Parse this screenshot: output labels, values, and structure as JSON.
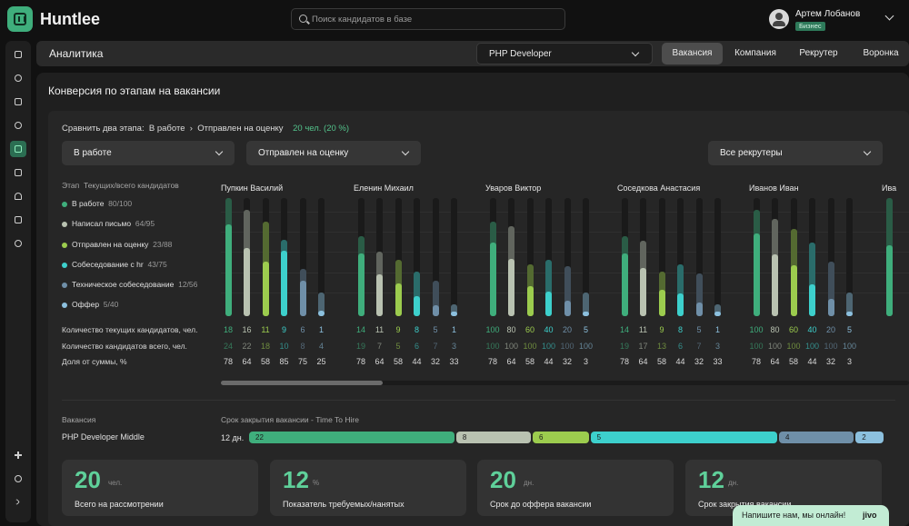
{
  "brand": "Huntlee",
  "search": {
    "placeholder": "Поиск кандидатов в базе"
  },
  "user": {
    "name": "Артем Лобанов",
    "plan": "Бизнес"
  },
  "page": {
    "title": "Аналитика"
  },
  "job_select": {
    "value": "PHP Developer"
  },
  "tabs": [
    {
      "label": "Вакансия",
      "active": true
    },
    {
      "label": "Компания",
      "active": false
    },
    {
      "label": "Рекрутер",
      "active": false
    },
    {
      "label": "Воронка",
      "active": false
    }
  ],
  "panel": {
    "title": "Конверсия по этапам на вакансии"
  },
  "compare": {
    "label": "Сравнить два этапа:",
    "stage_from": "В работе",
    "arrow": "›",
    "stage_to": "Отправлен на оценку",
    "result": "20 чел. (20 %)"
  },
  "filters": {
    "stage1": "В работе",
    "stage2": "Отправлен на оценку",
    "recruiters": "Все рекрутеры"
  },
  "legend_header": {
    "stage": "Этап",
    "current": "Текущих/всего кандидатов"
  },
  "colors": {
    "accent": "#53c28b",
    "stage": [
      "#3fae7c",
      "#b9c2b1",
      "#9ccc4e",
      "#3dd0cc",
      "#6f8fa8",
      "#8cc0de"
    ]
  },
  "stages": [
    {
      "name": "В работе",
      "counts": "80/100"
    },
    {
      "name": "Написал письмо",
      "counts": "64/95"
    },
    {
      "name": "Отправлен на оценку",
      "counts": "23/88"
    },
    {
      "name": "Собеседование с hr",
      "counts": "43/75"
    },
    {
      "name": "Техническое собеседование",
      "counts": "12/56"
    },
    {
      "name": "Оффер",
      "counts": "5/40"
    }
  ],
  "row_labels": {
    "current": "Количество текущих кандидатов, чел.",
    "total": "Количество кандидатов всего, чел.",
    "share": "Доля от суммы, %"
  },
  "recruiters": [
    {
      "name": "Пупкин Василий",
      "current": [
        18,
        16,
        11,
        9,
        6,
        1
      ],
      "total": [
        24,
        22,
        18,
        10,
        8,
        4
      ],
      "share": [
        78,
        64,
        58,
        85,
        75,
        25
      ],
      "bars": [
        1.0,
        0.9,
        0.8,
        0.65,
        0.4,
        0.2
      ]
    },
    {
      "name": "Еленин Михаил",
      "current": [
        14,
        11,
        9,
        8,
        5,
        1
      ],
      "total": [
        19,
        7,
        5,
        6,
        7,
        3
      ],
      "share": [
        78,
        64,
        58,
        44,
        32,
        33
      ],
      "bars": [
        0.68,
        0.55,
        0.48,
        0.38,
        0.3,
        0.1
      ]
    },
    {
      "name": "Уваров Виктор",
      "current": [
        100,
        80,
        60,
        40,
        20,
        5
      ],
      "total": [
        100,
        100,
        100,
        100,
        100,
        100
      ],
      "share": [
        78,
        64,
        58,
        44,
        32,
        3
      ],
      "bars": [
        0.8,
        0.76,
        0.44,
        0.48,
        0.42,
        0.2
      ]
    },
    {
      "name": "Соседкова Анастасия",
      "current": [
        14,
        11,
        9,
        8,
        5,
        1
      ],
      "total": [
        19,
        17,
        13,
        6,
        7,
        3
      ],
      "share": [
        78,
        64,
        58,
        44,
        32,
        33
      ],
      "bars": [
        0.68,
        0.64,
        0.38,
        0.44,
        0.36,
        0.1
      ]
    },
    {
      "name": "Иванов Иван",
      "current": [
        100,
        80,
        60,
        40,
        20,
        5
      ],
      "total": [
        100,
        100,
        100,
        100,
        100,
        100
      ],
      "share": [
        78,
        64,
        58,
        44,
        32,
        3
      ],
      "bars": [
        0.9,
        0.82,
        0.74,
        0.62,
        0.46,
        0.2
      ]
    },
    {
      "name": "Ива",
      "current": [],
      "total": [],
      "share": [],
      "bars": [
        1.0
      ]
    }
  ],
  "bottom": {
    "col_vacancy": "Вакансия",
    "col_tth": "Срок закрытия вакансии - Time To Hire",
    "vacancy": "PHP Developer Middle",
    "total_days": "12 дн."
  },
  "tth_segments": [
    {
      "value": "22",
      "weight": 22
    },
    {
      "value": "8",
      "weight": 8
    },
    {
      "value": "6",
      "weight": 6
    },
    {
      "value": "5",
      "weight": 20
    },
    {
      "value": "4",
      "weight": 8
    },
    {
      "value": "2",
      "weight": 3
    }
  ],
  "cards": [
    {
      "number": "20",
      "unit": "чел.",
      "label": "Всего на рассмотрении"
    },
    {
      "number": "12",
      "unit": "%",
      "label": "Показатель требуемых/нанятых"
    },
    {
      "number": "20",
      "unit": "дн.",
      "label": "Срок до оффера вакансии"
    },
    {
      "number": "12",
      "unit": "дн.",
      "label": "Срок закрытия вакансии"
    }
  ],
  "chat": {
    "text": "Напишите нам, мы онлайн!",
    "brand": "jivo"
  }
}
